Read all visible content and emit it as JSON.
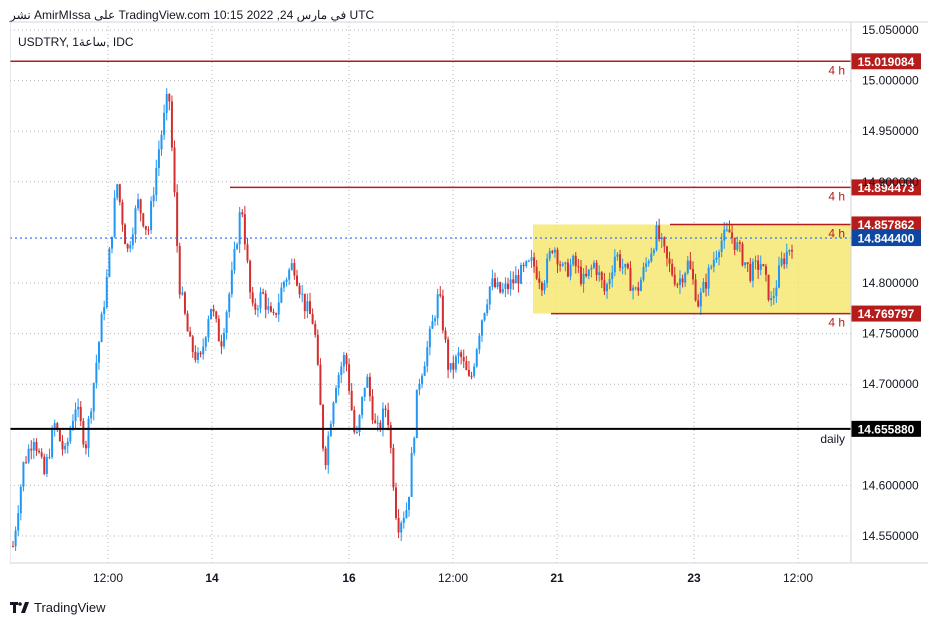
{
  "header": {
    "text": "نشر AmirMIssa على TradingView.com 10:15 2022 ,24 في مارس UTC"
  },
  "footer": {
    "brand": "TradingView",
    "logo_icon": "tradingview-logo-icon"
  },
  "colors": {
    "up": "#2196f3",
    "down": "#d32f2f",
    "level": "#b71c1c",
    "support": "#000000",
    "box": "#f5e66a",
    "last": "#0d47a1"
  },
  "chart_data": {
    "type": "candlestick",
    "symbol_label": "USDTRY, 1ساعة, IDC",
    "ylim": [
      14.53,
      15.06
    ],
    "y_ticks": [
      {
        "value": 15.05,
        "label": "15.050000"
      },
      {
        "value": 15.0,
        "label": "15.000000"
      },
      {
        "value": 14.95,
        "label": "14.950000"
      },
      {
        "value": 14.9,
        "label": "14.900000"
      },
      {
        "value": 14.8,
        "label": "14.800000"
      },
      {
        "value": 14.75,
        "label": "14.750000"
      },
      {
        "value": 14.7,
        "label": "14.700000"
      },
      {
        "value": 14.6,
        "label": "14.600000"
      },
      {
        "value": 14.55,
        "label": "14.550000"
      }
    ],
    "x_ticks": [
      {
        "label": "12:00",
        "bold": false
      },
      {
        "label": "14",
        "bold": true
      },
      {
        "label": "16",
        "bold": true
      },
      {
        "label": "12:00",
        "bold": false
      },
      {
        "label": "21",
        "bold": true
      },
      {
        "label": "23",
        "bold": true
      },
      {
        "label": "12:00",
        "bold": false
      }
    ],
    "levels": [
      {
        "value": 15.019084,
        "label": "15.019084",
        "tag": "4 h",
        "color": "#b71c1c"
      },
      {
        "value": 14.894473,
        "label": "14.894473",
        "tag": "4 h",
        "color": "#b71c1c"
      },
      {
        "value": 14.857862,
        "label": "14.857862",
        "tag": "4 h",
        "color": "#b71c1c"
      },
      {
        "value": 14.769797,
        "label": "14.769797",
        "tag": "4 h",
        "color": "#b71c1c"
      },
      {
        "value": 14.65588,
        "label": "14.655880",
        "tag": "daily",
        "color": "#000000"
      }
    ],
    "last_price": {
      "value": 14.8444,
      "label": "14.844400"
    },
    "range_box": {
      "top": 14.857862,
      "bottom": 14.769797
    },
    "series": [
      {
        "name": "USDTRY",
        "anchors": [
          14.54,
          14.62,
          14.65,
          14.61,
          14.66,
          14.63,
          14.68,
          14.64,
          14.72,
          14.8,
          14.9,
          14.83,
          14.88,
          14.85,
          14.93,
          14.99,
          14.8,
          14.74,
          14.72,
          14.78,
          14.74,
          14.8,
          14.88,
          14.77,
          14.79,
          14.76,
          14.8,
          14.82,
          14.78,
          14.76,
          14.62,
          14.7,
          14.73,
          14.64,
          14.71,
          14.65,
          14.68,
          14.56,
          14.58,
          14.7,
          14.74,
          14.79,
          14.71,
          14.73,
          14.7,
          14.76,
          14.8,
          14.79,
          14.8,
          14.81,
          14.82,
          14.8,
          14.84,
          14.81,
          14.82,
          14.8,
          14.82,
          14.79,
          14.83,
          14.81,
          14.79,
          14.82,
          14.85,
          14.82,
          14.8,
          14.82,
          14.78,
          14.81,
          14.84,
          14.85,
          14.83,
          14.81,
          14.82,
          14.78,
          14.82,
          14.84
        ]
      }
    ]
  }
}
